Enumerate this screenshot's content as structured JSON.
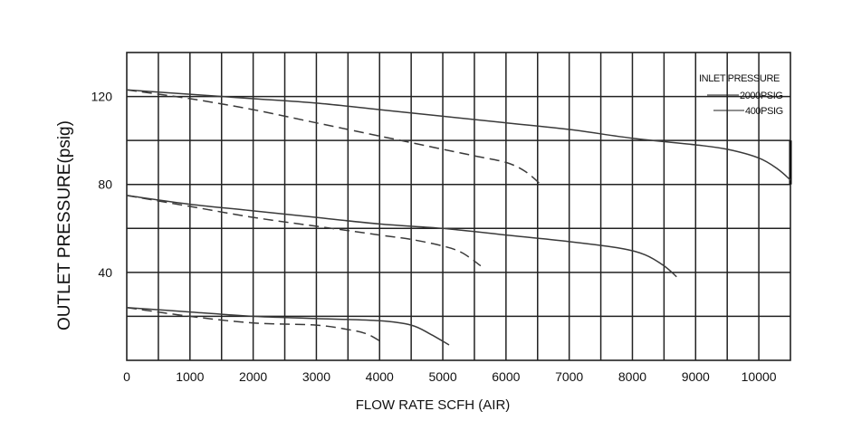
{
  "chart_data": {
    "type": "line",
    "title": "",
    "xlabel": "FLOW RATE SCFH (AIR)",
    "ylabel": "OUTLET PRESSURE(psig)",
    "xlim": [
      0,
      10500
    ],
    "ylim": [
      0,
      140
    ],
    "x_ticks": [
      0,
      1000,
      2000,
      3000,
      4000,
      5000,
      6000,
      7000,
      8000,
      9000,
      10000
    ],
    "x_tick_labels": [
      "0",
      "1000",
      "2000",
      "3000",
      "4000",
      "5000",
      "6000",
      "7000",
      "8000",
      "9000",
      "10000"
    ],
    "y_ticks": [
      40,
      80,
      120
    ],
    "y_tick_labels": [
      "40",
      "80",
      "120"
    ],
    "grid": true,
    "legend": {
      "title": "INLET PRESSURE",
      "placement": "top-right",
      "entries": [
        "2000PSIG",
        "400PSIG"
      ]
    },
    "series": [
      {
        "group": "2000PSIG",
        "style": "solid",
        "x": [
          0,
          1000,
          2000,
          3000,
          4000,
          5000,
          6000,
          7000,
          8000,
          9000,
          9500,
          10000,
          10300,
          10500
        ],
        "y": [
          123,
          121,
          119,
          117,
          114,
          111,
          108,
          105,
          101,
          98,
          96,
          92,
          87,
          82
        ]
      },
      {
        "group": "400PSIG",
        "style": "dashed",
        "x": [
          0,
          1000,
          2000,
          3000,
          4000,
          4500,
          5000,
          5500,
          6000,
          6300,
          6550
        ],
        "y": [
          123,
          119,
          114,
          108,
          102,
          99,
          96,
          93,
          90,
          86,
          80
        ]
      },
      {
        "group": "2000PSIG",
        "style": "solid",
        "x": [
          0,
          1000,
          2000,
          3000,
          4000,
          5000,
          6000,
          7000,
          7800,
          8200,
          8500,
          8700
        ],
        "y": [
          75,
          71,
          68,
          65,
          62,
          60,
          57,
          54,
          51,
          48,
          43,
          38
        ]
      },
      {
        "group": "400PSIG",
        "style": "dashed",
        "x": [
          0,
          1000,
          2000,
          3000,
          4000,
          4500,
          5000,
          5300,
          5600
        ],
        "y": [
          75,
          70,
          65,
          61,
          57,
          55,
          52,
          49,
          43
        ]
      },
      {
        "group": "2000PSIG",
        "style": "solid",
        "x": [
          0,
          1000,
          2000,
          3000,
          4000,
          4500,
          4800,
          5100
        ],
        "y": [
          24,
          22,
          20,
          19,
          18,
          16,
          12,
          7
        ]
      },
      {
        "group": "400PSIG",
        "style": "dashed",
        "x": [
          0,
          1000,
          2000,
          3000,
          3500,
          3800,
          4050
        ],
        "y": [
          24,
          20,
          17,
          16,
          14,
          12,
          8
        ]
      }
    ]
  }
}
